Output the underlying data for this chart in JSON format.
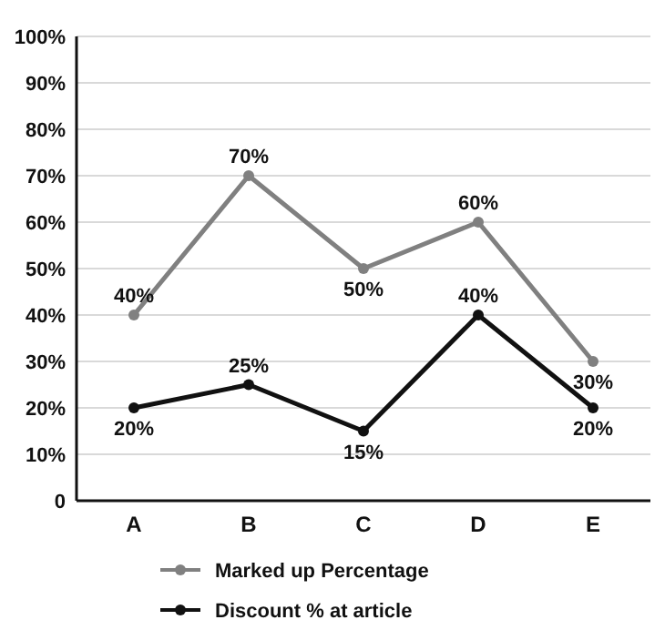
{
  "chart_data": {
    "type": "line",
    "categories": [
      "A",
      "B",
      "C",
      "D",
      "E"
    ],
    "series": [
      {
        "name": "Marked up Percentage",
        "color": "#808080",
        "values": [
          40,
          70,
          50,
          60,
          30
        ],
        "value_labels": [
          "40%",
          "70%",
          "50%",
          "60%",
          "30%"
        ]
      },
      {
        "name": "Discount % at article",
        "color": "#111111",
        "values": [
          20,
          25,
          15,
          40,
          20
        ],
        "value_labels": [
          "20%",
          "25%",
          "15%",
          "40%",
          "20%"
        ]
      }
    ],
    "ylim": [
      0,
      100
    ],
    "yticks": [
      {
        "value": 0,
        "label": "0"
      },
      {
        "value": 10,
        "label": "10%"
      },
      {
        "value": 20,
        "label": "20%"
      },
      {
        "value": 30,
        "label": "30%"
      },
      {
        "value": 40,
        "label": "40%"
      },
      {
        "value": 50,
        "label": "50%"
      },
      {
        "value": 60,
        "label": "60%"
      },
      {
        "value": 70,
        "label": "70%"
      },
      {
        "value": 80,
        "label": "80%"
      },
      {
        "value": 90,
        "label": "90%"
      },
      {
        "value": 100,
        "label": "100%"
      }
    ],
    "grid": "y",
    "legend": "bottom",
    "marker": "circle",
    "line_style": "solid"
  }
}
